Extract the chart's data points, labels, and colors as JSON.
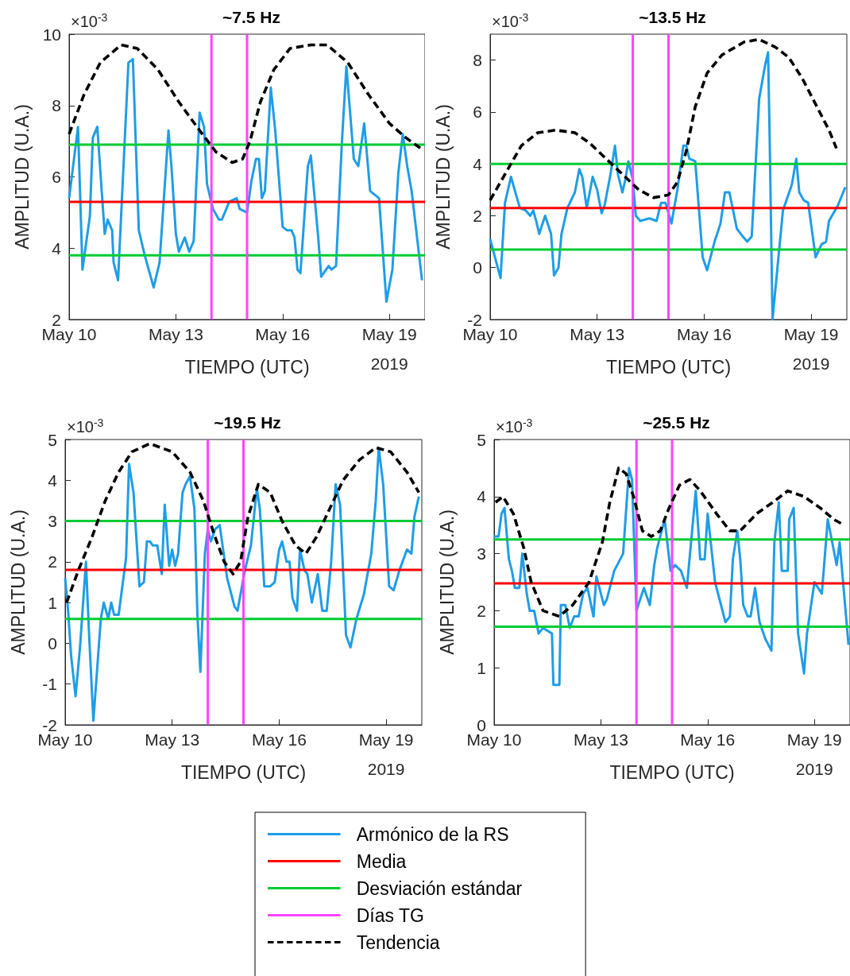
{
  "chart_data": [
    {
      "type": "line",
      "title": "~7.5 Hz",
      "xlabel": "TIEMPO (UTC)",
      "ylabel": "AMPLITUD (U.A.)",
      "annotations": [
        "×10$^{-3}$",
        "2019"
      ],
      "marker": "none",
      "xlim": [
        "2019-05-10",
        "2019-05-20"
      ],
      "xticks": [
        {
          "value": "2019-05-10",
          "label": "May 10"
        },
        {
          "value": "2019-05-13",
          "label": "May 13"
        },
        {
          "value": "2019-05-16",
          "label": "May 16"
        },
        {
          "value": "2019-05-19",
          "label": "May 19"
        }
      ],
      "ylim": [
        2,
        10
      ],
      "yticks": [
        2,
        4,
        6,
        8,
        10
      ],
      "series": [
        {
          "color": "#1f9de6",
          "x": [
            "2019-05-10T00:00",
            "2019-05-10T06:00",
            "2019-05-10T09:00",
            "2019-05-10T14:00",
            "2019-05-10T16:00",
            "2019-05-10T19:00",
            "2019-05-11T00:00",
            "2019-05-11T02:00",
            "2019-05-11T05:00",
            "2019-05-11T06:00",
            "2019-05-11T09:00",
            "2019-05-11T16:00",
            "2019-05-11T19:00",
            "2019-05-11T23:00",
            "2019-05-12T03:00",
            "2019-05-12T09:00",
            "2019-05-12T13:00",
            "2019-05-12T19:00",
            "2019-05-12T21:00",
            "2019-05-13T00:00",
            "2019-05-13T02:00",
            "2019-05-13T06:00",
            "2019-05-13T09:00",
            "2019-05-13T12:00",
            "2019-05-13T16:00",
            "2019-05-13T19:00",
            "2019-05-13T21:00",
            "2019-05-14T01:00",
            "2019-05-14T05:00",
            "2019-05-14T07:00",
            "2019-05-14T12:00",
            "2019-05-14T17:00",
            "2019-05-14T19:00",
            "2019-05-15T00:00",
            "2019-05-15T03:00",
            "2019-05-15T06:00",
            "2019-05-15T08:00",
            "2019-05-15T10:00",
            "2019-05-15T12:00",
            "2019-05-15T16:00",
            "2019-05-15T19:00",
            "2019-05-16T00:00",
            "2019-05-16T03:00",
            "2019-05-16T06:00",
            "2019-05-16T08:00",
            "2019-05-16T10:00",
            "2019-05-16T12:00",
            "2019-05-16T17:00",
            "2019-05-16T19:00",
            "2019-05-17T00:00",
            "2019-05-17T02:00",
            "2019-05-17T07:00",
            "2019-05-17T09:00",
            "2019-05-17T12:00",
            "2019-05-17T16:00",
            "2019-05-17T19:00",
            "2019-05-18T00:00",
            "2019-05-18T03:00",
            "2019-05-18T07:00",
            "2019-05-18T11:00",
            "2019-05-18T14:00",
            "2019-05-18T17:00",
            "2019-05-18T22:00",
            "2019-05-19T02:00",
            "2019-05-19T06:00",
            "2019-05-19T09:00",
            "2019-05-19T12:00",
            "2019-05-19T15:00",
            "2019-05-19T22:00"
          ],
          "values": [
            5.4,
            7.4,
            3.4,
            4.9,
            7.1,
            7.4,
            4.4,
            4.8,
            4.5,
            3.6,
            3.1,
            9.2,
            9.3,
            4.5,
            3.8,
            2.9,
            3.6,
            7.3,
            6.3,
            4.4,
            3.9,
            4.3,
            3.9,
            4.2,
            7.8,
            7.4,
            5.8,
            5.1,
            4.8,
            4.8,
            5.3,
            5.4,
            5.1,
            5.0,
            5.9,
            6.5,
            6.5,
            5.4,
            5.6,
            8.5,
            7.3,
            4.6,
            4.5,
            4.5,
            4.3,
            3.4,
            3.3,
            6.3,
            6.6,
            4.3,
            3.2,
            3.5,
            3.4,
            3.5,
            7.0,
            9.1,
            6.5,
            6.3,
            7.5,
            5.6,
            5.5,
            5.4,
            2.5,
            3.4,
            6.1,
            7.2,
            6.3,
            5.6,
            3.1
          ]
        },
        {
          "color": "#000000",
          "line_style": "dashed",
          "x": [
            "2019-05-10T00:00",
            "2019-05-10T10:00",
            "2019-05-10T21:00",
            "2019-05-11T11:00",
            "2019-05-11T22:00",
            "2019-05-12T12:00",
            "2019-05-13T02:00",
            "2019-05-13T16:00",
            "2019-05-14T03:00",
            "2019-05-14T14:00",
            "2019-05-14T21:00",
            "2019-05-15T02:00",
            "2019-05-15T09:00",
            "2019-05-15T18:00",
            "2019-05-16T05:00",
            "2019-05-16T19:00",
            "2019-05-17T06:00",
            "2019-05-17T20:00",
            "2019-05-18T10:00",
            "2019-05-19T00:00",
            "2019-05-19T11:00",
            "2019-05-19T21:00"
          ],
          "values": [
            7.2,
            8.3,
            9.2,
            9.7,
            9.6,
            9.0,
            8.1,
            7.3,
            6.7,
            6.4,
            6.5,
            7.0,
            8.1,
            9.0,
            9.6,
            9.7,
            9.7,
            9.2,
            8.3,
            7.5,
            7.1,
            6.8
          ]
        }
      ],
      "ref_lines": [
        {
          "axis": "y",
          "value": 6.9,
          "color": "#00cc33"
        },
        {
          "axis": "y",
          "value": 5.3,
          "color": "#ff0000"
        },
        {
          "axis": "y",
          "value": 3.8,
          "color": "#00cc33"
        },
        {
          "axis": "x",
          "value": "2019-05-14",
          "color": "#ff44ff"
        },
        {
          "axis": "x",
          "value": "2019-05-15",
          "color": "#ff44ff"
        }
      ]
    },
    {
      "type": "line",
      "title": "~13.5 Hz",
      "xlabel": "TIEMPO (UTC)",
      "ylabel": "AMPLITUD (U.A.)",
      "annotations": [
        "×10$^{-3}$",
        "2019"
      ],
      "marker": "none",
      "xlim": [
        "2019-05-10",
        "2019-05-20"
      ],
      "xticks": [
        {
          "value": "2019-05-10",
          "label": "May 10"
        },
        {
          "value": "2019-05-13",
          "label": "May 13"
        },
        {
          "value": "2019-05-16",
          "label": "May 16"
        },
        {
          "value": "2019-05-19",
          "label": "May 19"
        }
      ],
      "ylim": [
        -2,
        9
      ],
      "yticks": [
        -2,
        0,
        2,
        4,
        6,
        8
      ],
      "series": [
        {
          "color": "#1f9de6",
          "x": [
            "2019-05-10T00:00",
            "2019-05-10T07:00",
            "2019-05-10T10:00",
            "2019-05-10T14:00",
            "2019-05-10T18:00",
            "2019-05-10T20:00",
            "2019-05-11T00:00",
            "2019-05-11T03:00",
            "2019-05-11T05:00",
            "2019-05-11T07:00",
            "2019-05-11T09:00",
            "2019-05-11T13:00",
            "2019-05-11T17:00",
            "2019-05-11T19:00",
            "2019-05-11T22:00",
            "2019-05-12T00:00",
            "2019-05-12T04:00",
            "2019-05-12T09:00",
            "2019-05-12T12:00",
            "2019-05-12T14:00",
            "2019-05-12T17:00",
            "2019-05-12T21:00",
            "2019-05-13T00:00",
            "2019-05-13T03:00",
            "2019-05-13T05:00",
            "2019-05-13T09:00",
            "2019-05-13T12:00",
            "2019-05-13T14:00",
            "2019-05-13T17:00",
            "2019-05-13T19:00",
            "2019-05-13T21:00",
            "2019-05-14T00:00",
            "2019-05-14T02:00",
            "2019-05-14T05:00",
            "2019-05-14T11:00",
            "2019-05-14T16:00",
            "2019-05-14T19:00",
            "2019-05-14T22:00",
            "2019-05-15T02:00",
            "2019-05-15T06:00",
            "2019-05-15T10:00",
            "2019-05-15T12:00",
            "2019-05-15T14:00",
            "2019-05-15T18:00",
            "2019-05-15T23:00",
            "2019-05-16T02:00",
            "2019-05-16T07:00",
            "2019-05-16T11:00",
            "2019-05-16T14:00",
            "2019-05-16T17:00",
            "2019-05-16T22:00",
            "2019-05-17T02:00",
            "2019-05-17T05:00",
            "2019-05-17T08:00",
            "2019-05-17T13:00",
            "2019-05-17T17:00",
            "2019-05-17T19:00",
            "2019-05-17T20:00",
            "2019-05-17T22:00",
            "2019-05-18T05:00",
            "2019-05-18T11:00",
            "2019-05-18T14:00",
            "2019-05-18T16:00",
            "2019-05-18T19:00",
            "2019-05-18T22:00",
            "2019-05-19T03:00",
            "2019-05-19T07:00",
            "2019-05-19T10:00",
            "2019-05-19T12:00",
            "2019-05-19T18:00",
            "2019-05-19T23:00"
          ],
          "values": [
            1.1,
            -0.4,
            2.5,
            3.5,
            2.7,
            2.3,
            2.2,
            2.0,
            2.2,
            1.8,
            1.3,
            2.0,
            1.3,
            -0.3,
            0.0,
            1.3,
            2.3,
            2.9,
            3.8,
            3.5,
            2.3,
            3.5,
            3.0,
            2.1,
            2.4,
            3.6,
            4.7,
            3.6,
            2.9,
            3.4,
            4.1,
            3.4,
            2.0,
            1.8,
            1.9,
            1.8,
            2.5,
            2.5,
            1.7,
            3.0,
            4.7,
            4.7,
            4.2,
            4.1,
            0.4,
            -0.1,
            1.0,
            1.7,
            2.9,
            2.9,
            1.5,
            1.2,
            1.0,
            1.2,
            6.5,
            7.8,
            8.3,
            5.3,
            -2.0,
            2.2,
            3.2,
            4.2,
            2.9,
            2.6,
            2.5,
            0.4,
            0.9,
            1.0,
            1.8,
            2.4,
            3.1
          ]
        },
        {
          "color": "#000000",
          "line_style": "dashed",
          "x": [
            "2019-05-10T00:00",
            "2019-05-10T11:00",
            "2019-05-10T21:00",
            "2019-05-11T08:00",
            "2019-05-11T20:00",
            "2019-05-12T09:00",
            "2019-05-12T19:00",
            "2019-05-13T06:00",
            "2019-05-13T17:00",
            "2019-05-14T04:00",
            "2019-05-14T14:00",
            "2019-05-15T00:00",
            "2019-05-15T06:00",
            "2019-05-15T12:00",
            "2019-05-15T18:00",
            "2019-05-16T02:00",
            "2019-05-16T12:00",
            "2019-05-17T03:00",
            "2019-05-17T13:00",
            "2019-05-18T00:00",
            "2019-05-18T09:00",
            "2019-05-18T18:00",
            "2019-05-19T03:00",
            "2019-05-19T12:00",
            "2019-05-19T17:00"
          ],
          "values": [
            2.6,
            3.7,
            4.7,
            5.2,
            5.3,
            5.2,
            4.8,
            4.2,
            3.6,
            3.0,
            2.7,
            2.8,
            3.3,
            4.5,
            6.2,
            7.5,
            8.2,
            8.7,
            8.8,
            8.5,
            8.1,
            7.3,
            6.3,
            5.3,
            4.6
          ]
        }
      ],
      "ref_lines": [
        {
          "axis": "y",
          "value": 4.0,
          "color": "#00cc33"
        },
        {
          "axis": "y",
          "value": 2.3,
          "color": "#ff0000"
        },
        {
          "axis": "y",
          "value": 0.7,
          "color": "#00cc33"
        },
        {
          "axis": "x",
          "value": "2019-05-14",
          "color": "#ff44ff"
        },
        {
          "axis": "x",
          "value": "2019-05-15",
          "color": "#ff44ff"
        }
      ]
    },
    {
      "type": "line",
      "title": "~19.5 Hz",
      "xlabel": "TIEMPO (UTC)",
      "ylabel": "AMPLITUD (U.A.)",
      "annotations": [
        "×10$^{-3}$",
        "2019"
      ],
      "marker": "none",
      "xlim": [
        "2019-05-10",
        "2019-05-20"
      ],
      "xticks": [
        {
          "value": "2019-05-10",
          "label": "May 10"
        },
        {
          "value": "2019-05-13",
          "label": "May 13"
        },
        {
          "value": "2019-05-16",
          "label": "May 16"
        },
        {
          "value": "2019-05-19",
          "label": "May 19"
        }
      ],
      "ylim": [
        -2,
        5
      ],
      "yticks": [
        -2,
        -1,
        0,
        1,
        2,
        3,
        4,
        5
      ],
      "series": [
        {
          "color": "#1f9de6",
          "x": [
            "2019-05-10T00:00",
            "2019-05-10T02:00",
            "2019-05-10T04:00",
            "2019-05-10T07:00",
            "2019-05-10T10:00",
            "2019-05-10T14:00",
            "2019-05-10T16:00",
            "2019-05-10T19:00",
            "2019-05-11T00:00",
            "2019-05-11T02:00",
            "2019-05-11T05:00",
            "2019-05-11T07:00",
            "2019-05-11T09:00",
            "2019-05-11T12:00",
            "2019-05-11T17:00",
            "2019-05-11T19:00",
            "2019-05-11T22:00",
            "2019-05-12T02:00",
            "2019-05-12T05:00",
            "2019-05-12T07:00",
            "2019-05-12T09:00",
            "2019-05-12T11:00",
            "2019-05-12T14:00",
            "2019-05-12T17:00",
            "2019-05-12T19:00",
            "2019-05-12T22:00",
            "2019-05-13T00:00",
            "2019-05-13T02:00",
            "2019-05-13T04:00",
            "2019-05-13T07:00",
            "2019-05-13T09:00",
            "2019-05-13T12:00",
            "2019-05-13T15:00",
            "2019-05-13T17:00",
            "2019-05-13T19:00",
            "2019-05-13T22:00",
            "2019-05-14T00:00",
            "2019-05-14T02:00",
            "2019-05-14T05:00",
            "2019-05-14T08:00",
            "2019-05-14T13:00",
            "2019-05-14T18:00",
            "2019-05-14T20:00",
            "2019-05-15T01:00",
            "2019-05-15T05:00",
            "2019-05-15T09:00",
            "2019-05-15T11:00",
            "2019-05-15T14:00",
            "2019-05-15T18:00",
            "2019-05-15T21:00",
            "2019-05-16T00:00",
            "2019-05-16T02:00",
            "2019-05-16T05:00",
            "2019-05-16T07:00",
            "2019-05-16T09:00",
            "2019-05-16T12:00",
            "2019-05-16T14:00",
            "2019-05-16T17:00",
            "2019-05-16T19:00",
            "2019-05-16T22:00",
            "2019-05-17T02:00",
            "2019-05-17T05:00",
            "2019-05-17T08:00",
            "2019-05-17T11:00",
            "2019-05-17T14:00",
            "2019-05-17T17:00",
            "2019-05-17T21:00",
            "2019-05-18T00:00",
            "2019-05-18T04:00",
            "2019-05-18T09:00",
            "2019-05-18T14:00",
            "2019-05-18T17:00",
            "2019-05-18T19:00",
            "2019-05-18T22:00",
            "2019-05-19T02:00",
            "2019-05-19T05:00",
            "2019-05-19T09:00",
            "2019-05-19T14:00",
            "2019-05-19T17:00",
            "2019-05-19T19:00",
            "2019-05-19T22:00"
          ],
          "values": [
            1.6,
            0.8,
            -0.3,
            -1.3,
            -0.1,
            2.0,
            0.3,
            -1.9,
            0.6,
            1.0,
            0.6,
            1.0,
            0.7,
            0.7,
            2.1,
            4.4,
            3.7,
            1.4,
            1.5,
            2.5,
            2.5,
            2.4,
            2.4,
            1.7,
            3.4,
            1.9,
            2.3,
            1.9,
            2.2,
            3.7,
            3.9,
            4.1,
            3.3,
            0.7,
            -0.7,
            2.2,
            2.8,
            2.5,
            2.8,
            2.9,
            1.6,
            0.9,
            0.8,
            1.8,
            2.4,
            3.8,
            3.3,
            1.4,
            1.4,
            1.5,
            2.3,
            2.5,
            2.0,
            2.0,
            1.1,
            0.8,
            2.3,
            1.8,
            1.7,
            1.0,
            1.7,
            0.8,
            0.8,
            2.0,
            3.9,
            3.4,
            0.2,
            -0.1,
            0.6,
            1.2,
            2.2,
            3.5,
            4.8,
            3.9,
            1.4,
            1.3,
            1.8,
            2.3,
            2.2,
            3.1,
            3.6
          ]
        },
        {
          "color": "#000000",
          "line_style": "dashed",
          "x": [
            "2019-05-10T01:00",
            "2019-05-10T09:00",
            "2019-05-10T18:00",
            "2019-05-11T03:00",
            "2019-05-11T12:00",
            "2019-05-11T21:00",
            "2019-05-12T09:00",
            "2019-05-13T00:00",
            "2019-05-13T12:00",
            "2019-05-13T21:00",
            "2019-05-14T04:00",
            "2019-05-14T11:00",
            "2019-05-14T17:00",
            "2019-05-14T22:00",
            "2019-05-15T03:00",
            "2019-05-15T10:00",
            "2019-05-15T18:00",
            "2019-05-16T02:00",
            "2019-05-16T11:00",
            "2019-05-16T18:00",
            "2019-05-17T01:00",
            "2019-05-17T10:00",
            "2019-05-17T19:00",
            "2019-05-18T06:00",
            "2019-05-18T17:00",
            "2019-05-19T03:00",
            "2019-05-19T14:00",
            "2019-05-19T22:00"
          ],
          "values": [
            1.0,
            1.8,
            2.6,
            3.5,
            4.2,
            4.7,
            4.9,
            4.7,
            4.2,
            3.5,
            2.7,
            2.0,
            1.7,
            2.0,
            3.1,
            3.9,
            3.7,
            3.0,
            2.4,
            2.2,
            2.6,
            3.3,
            4.0,
            4.5,
            4.8,
            4.7,
            4.2,
            3.7
          ]
        }
      ],
      "ref_lines": [
        {
          "axis": "y",
          "value": 3.0,
          "color": "#00cc33"
        },
        {
          "axis": "y",
          "value": 1.8,
          "color": "#ff0000"
        },
        {
          "axis": "y",
          "value": 0.6,
          "color": "#00cc33"
        },
        {
          "axis": "x",
          "value": "2019-05-14",
          "color": "#ff44ff"
        },
        {
          "axis": "x",
          "value": "2019-05-15",
          "color": "#ff44ff"
        }
      ]
    },
    {
      "type": "line",
      "title": "~25.5 Hz",
      "xlabel": "TIEMPO (UTC)",
      "ylabel": "AMPLITUD (U.A.)",
      "annotations": [
        "×10$^{-3}$",
        "2019"
      ],
      "marker": "none",
      "legend": "bottom",
      "xlim": [
        "2019-05-10",
        "2019-05-20"
      ],
      "xticks": [
        {
          "value": "2019-05-10",
          "label": "May 10"
        },
        {
          "value": "2019-05-13",
          "label": "May 13"
        },
        {
          "value": "2019-05-16",
          "label": "May 16"
        },
        {
          "value": "2019-05-19",
          "label": "May 19"
        }
      ],
      "ylim": [
        0,
        5
      ],
      "yticks": [
        0,
        1,
        2,
        3,
        4,
        5
      ],
      "series": [
        {
          "name": "Armónico de la RS",
          "color": "#1f9de6",
          "x": [
            "2019-05-10T00:00",
            "2019-05-10T03:00",
            "2019-05-10T05:00",
            "2019-05-10T07:00",
            "2019-05-10T10:00",
            "2019-05-10T12:00",
            "2019-05-10T14:00",
            "2019-05-10T17:00",
            "2019-05-10T19:00",
            "2019-05-10T22:00",
            "2019-05-11T00:00",
            "2019-05-11T03:00",
            "2019-05-11T06:00",
            "2019-05-11T09:00",
            "2019-05-11T15:00",
            "2019-05-11T16:00",
            "2019-05-11T20:00",
            "2019-05-11T21:00",
            "2019-05-12T00:00",
            "2019-05-12T03:00",
            "2019-05-12T06:00",
            "2019-05-12T09:00",
            "2019-05-12T12:00",
            "2019-05-12T15:00",
            "2019-05-12T19:00",
            "2019-05-12T21:00",
            "2019-05-13T02:00",
            "2019-05-13T04:00",
            "2019-05-13T09:00",
            "2019-05-13T15:00",
            "2019-05-13T19:00",
            "2019-05-13T21:00",
            "2019-05-14T00:00",
            "2019-05-14T05:00",
            "2019-05-14T09:00",
            "2019-05-14T12:00",
            "2019-05-14T14:00",
            "2019-05-14T19:00",
            "2019-05-14T23:00",
            "2019-05-15T02:00",
            "2019-05-15T06:00",
            "2019-05-15T10:00",
            "2019-05-15T16:00",
            "2019-05-15T19:00",
            "2019-05-15T22:00",
            "2019-05-16T00:00",
            "2019-05-16T05:00",
            "2019-05-16T09:00",
            "2019-05-16T12:00",
            "2019-05-16T15:00",
            "2019-05-16T17:00",
            "2019-05-16T20:00",
            "2019-05-16T22:00",
            "2019-05-17T00:00",
            "2019-05-17T03:00",
            "2019-05-17T05:00",
            "2019-05-17T08:00",
            "2019-05-17T11:00",
            "2019-05-17T15:00",
            "2019-05-17T19:00",
            "2019-05-17T21:00",
            "2019-05-18T00:00",
            "2019-05-18T02:00",
            "2019-05-18T06:00",
            "2019-05-18T07:00",
            "2019-05-18T10:00",
            "2019-05-18T13:00",
            "2019-05-18T17:00",
            "2019-05-18T19:00",
            "2019-05-19T00:00",
            "2019-05-19T05:00",
            "2019-05-19T09:00",
            "2019-05-19T15:00",
            "2019-05-19T17:00",
            "2019-05-19T23:00"
          ],
          "values": [
            3.3,
            3.3,
            3.7,
            3.8,
            2.9,
            2.7,
            2.4,
            2.4,
            3.0,
            2.3,
            2.0,
            2.0,
            1.6,
            1.7,
            1.6,
            0.7,
            0.7,
            2.1,
            2.1,
            1.7,
            1.9,
            1.9,
            2.3,
            2.4,
            1.9,
            2.6,
            2.1,
            2.2,
            2.7,
            3.0,
            4.5,
            4.3,
            2.0,
            2.4,
            2.1,
            2.8,
            3.1,
            3.6,
            2.7,
            2.8,
            2.7,
            2.4,
            4.1,
            2.9,
            2.9,
            3.7,
            2.5,
            2.1,
            1.8,
            1.9,
            2.9,
            3.4,
            2.9,
            2.1,
            1.9,
            1.9,
            2.4,
            1.8,
            1.5,
            1.3,
            3.2,
            3.9,
            2.7,
            2.7,
            3.6,
            3.8,
            1.6,
            0.9,
            1.6,
            2.5,
            2.3,
            3.6,
            2.8,
            3.2,
            1.4
          ]
        },
        {
          "name": "Tendencia",
          "color": "#000000",
          "line_style": "dashed",
          "x": [
            "2019-05-10T01:00",
            "2019-05-10T06:00",
            "2019-05-10T13:00",
            "2019-05-10T20:00",
            "2019-05-11T01:00",
            "2019-05-11T09:00",
            "2019-05-11T20:00",
            "2019-05-12T05:00",
            "2019-05-12T16:00",
            "2019-05-13T01:00",
            "2019-05-13T06:00",
            "2019-05-13T12:00",
            "2019-05-13T17:00",
            "2019-05-13T22:00",
            "2019-05-14T04:00",
            "2019-05-14T10:00",
            "2019-05-14T16:00",
            "2019-05-14T22:00",
            "2019-05-15T05:00",
            "2019-05-15T12:00",
            "2019-05-15T19:00",
            "2019-05-16T06:00",
            "2019-05-16T15:00",
            "2019-05-16T22:00",
            "2019-05-17T09:00",
            "2019-05-17T20:00",
            "2019-05-18T06:00",
            "2019-05-18T17:00",
            "2019-05-19T04:00",
            "2019-05-19T13:00",
            "2019-05-19T20:00"
          ],
          "values": [
            3.9,
            4.0,
            3.7,
            3.1,
            2.5,
            2.0,
            1.9,
            2.1,
            2.5,
            3.2,
            3.9,
            4.5,
            4.4,
            4.0,
            3.4,
            3.3,
            3.4,
            3.8,
            4.2,
            4.3,
            4.1,
            3.7,
            3.4,
            3.4,
            3.7,
            3.9,
            4.1,
            4.0,
            3.8,
            3.6,
            3.5
          ]
        }
      ],
      "ref_lines": [
        {
          "axis": "y",
          "value": 2.48,
          "color": "#ff0000",
          "label": "Media"
        },
        {
          "axis": "y",
          "value": 3.25,
          "color": "#00cc33",
          "label": "Desviación estándar"
        },
        {
          "axis": "y",
          "value": 1.72,
          "color": "#00cc33"
        },
        {
          "axis": "x",
          "value": "2019-05-14",
          "color": "#ff44ff",
          "label": "Días TG"
        },
        {
          "axis": "x",
          "value": "2019-05-15",
          "color": "#ff44ff"
        }
      ]
    }
  ]
}
